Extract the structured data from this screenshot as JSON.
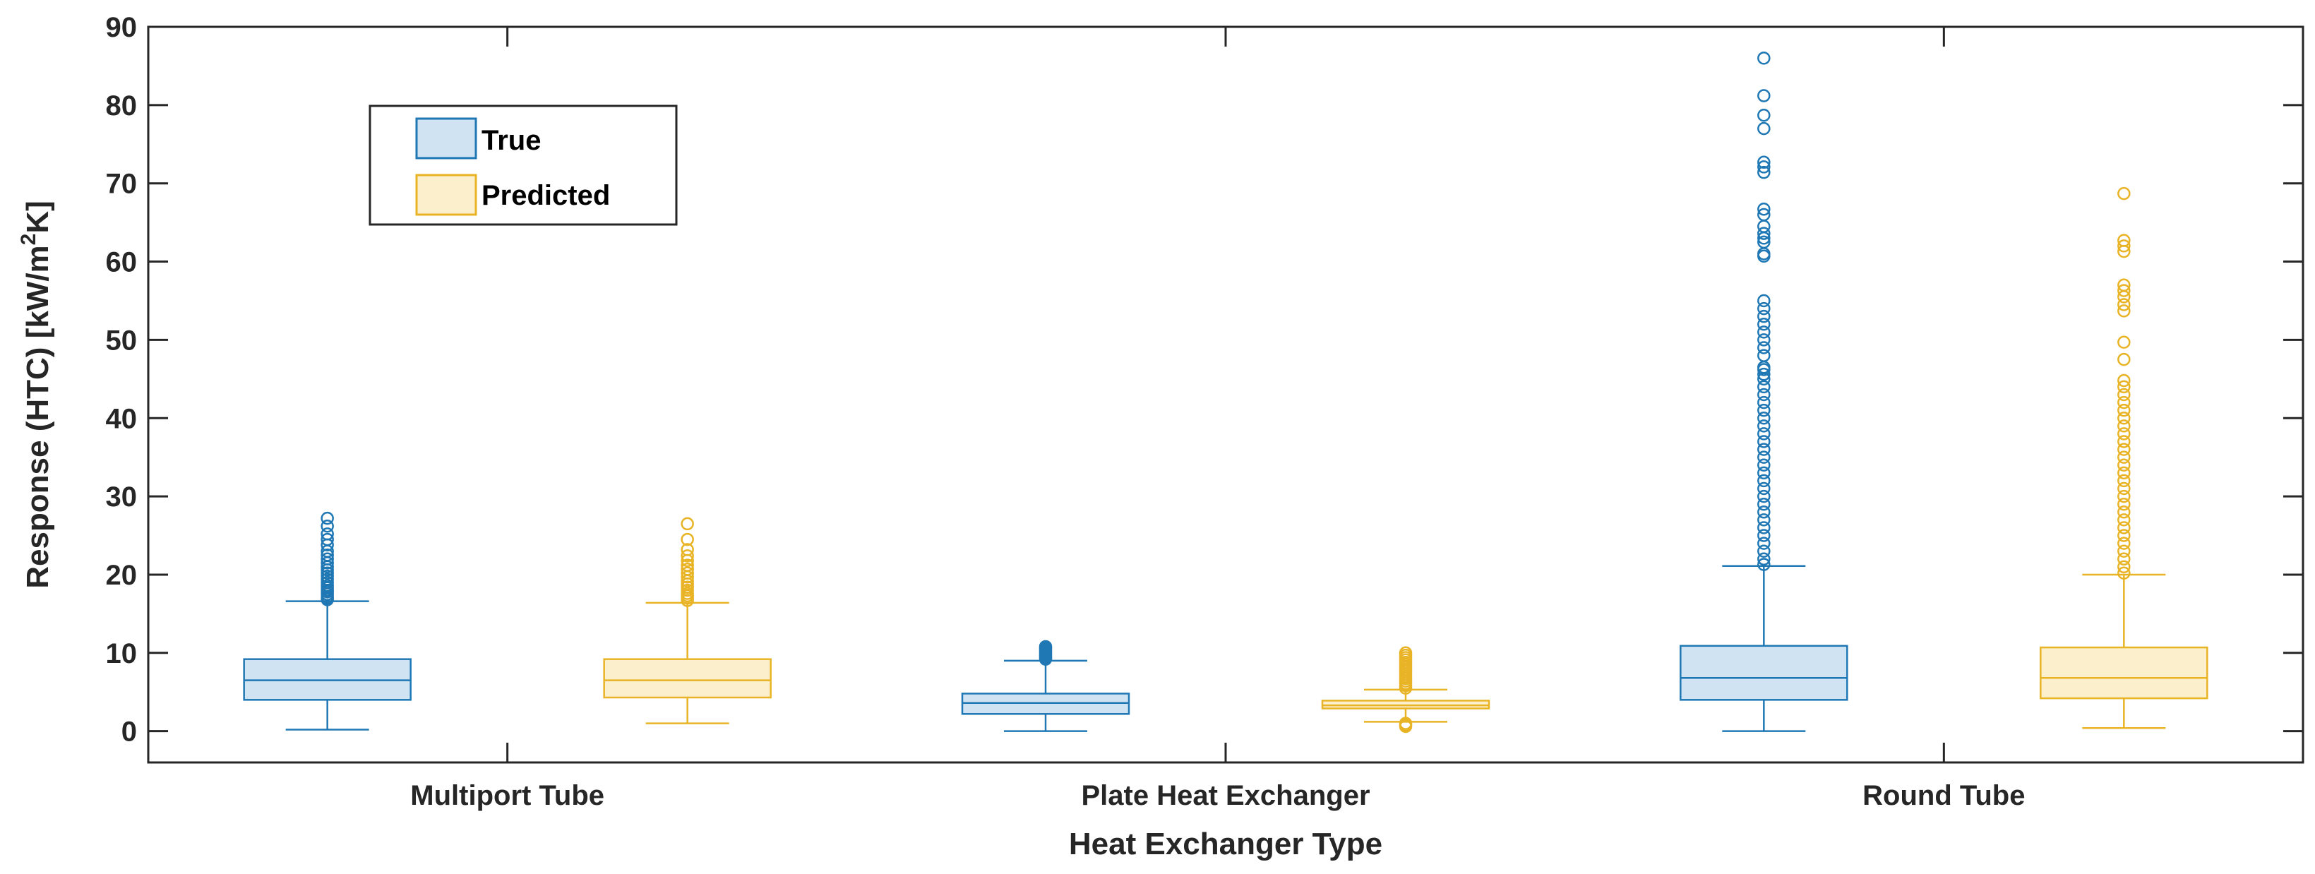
{
  "chart_data": {
    "type": "box",
    "xlabel": "Heat Exchanger Type",
    "ylabel_main": "Response (HTC) [kW/m",
    "ylabel_sup": "2",
    "ylabel_end": "K]",
    "ylim": [
      -4,
      90
    ],
    "yticks": [
      0,
      10,
      20,
      30,
      40,
      50,
      60,
      70,
      80,
      90
    ],
    "categories": [
      "Multiport Tube",
      "Plate Heat Exchanger",
      "Round Tube"
    ],
    "legend": {
      "position": "top-left",
      "entries": [
        "True",
        "Predicted"
      ]
    },
    "colors": {
      "True": {
        "stroke": "#1f77b4",
        "fill": "#cfe3f2",
        "outlier": "#1f77b4"
      },
      "Predicted": {
        "stroke": "#e8b325",
        "fill": "#fbefcc",
        "outlier": "#e8b325"
      }
    },
    "series": [
      {
        "name": "True",
        "boxes": [
          {
            "category": "Multiport Tube",
            "whisker_low": 0.2,
            "q1": 4.0,
            "median": 6.5,
            "q3": 9.2,
            "whisker_high": 16.6,
            "outliers": [
              16.8,
              17.0,
              17.2,
              17.5,
              17.8,
              18.0,
              18.3,
              18.6,
              19.0,
              19.4,
              19.8,
              20.2,
              20.6,
              21.0,
              21.5,
              22.0,
              22.5,
              23.0,
              23.8,
              24.5,
              25.2,
              26.2,
              27.2
            ]
          },
          {
            "category": "Plate Heat Exchanger",
            "whisker_low": 0.0,
            "q1": 2.2,
            "median": 3.6,
            "q3": 4.8,
            "whisker_high": 9.0,
            "outliers": [
              9.2,
              9.4,
              9.6,
              9.8,
              10.0,
              10.2,
              10.4,
              10.6,
              10.8
            ]
          },
          {
            "category": "Round Tube",
            "whisker_low": 0.0,
            "q1": 4.0,
            "median": 6.8,
            "q3": 10.9,
            "whisker_high": 21.1,
            "outliers": [
              21.3,
              22,
              23,
              24,
              25,
              26,
              27,
              28,
              29,
              30,
              31,
              32,
              33,
              34,
              35,
              36,
              37,
              38,
              39,
              40,
              41,
              42,
              43,
              44,
              45,
              45.6,
              46.2,
              46.5,
              48,
              49,
              50,
              51,
              52,
              53,
              54,
              55,
              60.7,
              61.0,
              62.5,
              63.0,
              63.6,
              64.5,
              66.0,
              66.7,
              71.4,
              72.1,
              72.7,
              77.0,
              78.7,
              81.2,
              86.0
            ]
          }
        ]
      },
      {
        "name": "Predicted",
        "boxes": [
          {
            "category": "Multiport Tube",
            "whisker_low": 1.0,
            "q1": 4.3,
            "median": 6.5,
            "q3": 9.2,
            "whisker_high": 16.4,
            "outliers": [
              16.7,
              17.0,
              17.3,
              17.6,
              18.0,
              18.4,
              18.8,
              19.2,
              19.7,
              20.2,
              20.7,
              21.2,
              21.8,
              22.4,
              23.2,
              24.5,
              26.5
            ]
          },
          {
            "category": "Plate Heat Exchanger",
            "whisker_low": 1.2,
            "q1": 2.9,
            "median": 3.3,
            "q3": 3.9,
            "whisker_high": 5.3,
            "outliers": [
              0.6,
              0.8,
              1.0,
              5.5,
              5.8,
              6.1,
              6.4,
              6.7,
              7.0,
              7.3,
              7.6,
              7.9,
              8.2,
              8.5,
              8.8,
              9.1,
              9.4,
              9.7,
              10.0
            ]
          },
          {
            "category": "Round Tube",
            "whisker_low": 0.4,
            "q1": 4.2,
            "median": 6.8,
            "q3": 10.7,
            "whisker_high": 20.0,
            "outliers": [
              20.2,
              21,
              22,
              23,
              24,
              25,
              26,
              27,
              28,
              29,
              30,
              31,
              32,
              33,
              34,
              35,
              36,
              37,
              38,
              39,
              40,
              41,
              42,
              43,
              44,
              44.8,
              47.5,
              49.7,
              53.7,
              54.5,
              55.5,
              56.3,
              57.0,
              61.3,
              62.0,
              62.7,
              68.7
            ]
          }
        ]
      }
    ]
  }
}
